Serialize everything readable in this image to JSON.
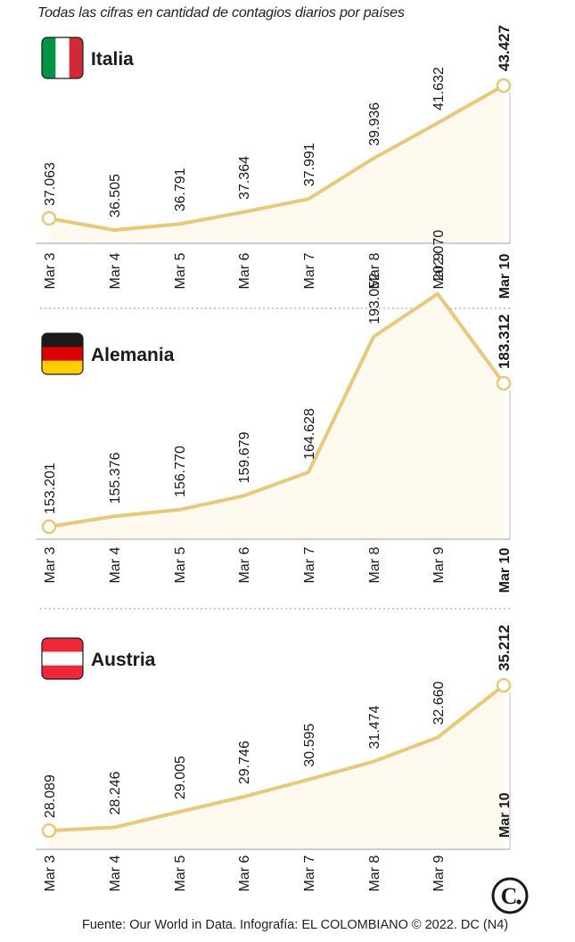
{
  "subtitle": "Todas las cifras en cantidad de contagios diarios por países",
  "source": "Fuente: Our World in Data. Infografía: EL COLOMBIANO © 2022. DC (N4)",
  "logo_text": "C",
  "colors": {
    "line": "#e6c97a",
    "area": "#fdf9ef",
    "marker_fill": "#ffffff"
  },
  "chart_data": [
    {
      "type": "line",
      "title": "Italia",
      "flag": [
        "#009246",
        "#ffffff",
        "#ce2b37"
      ],
      "flag_orientation": "vertical",
      "categories": [
        "Mar 3",
        "Mar 4",
        "Mar 5",
        "Mar 6",
        "Mar 7",
        "Mar 8",
        "Mar 9",
        "Mar 10"
      ],
      "value_labels": [
        "37.063",
        "36.505",
        "36.791",
        "37.364",
        "37.991",
        "39.936",
        "41.632",
        "43.427"
      ],
      "values": [
        37063,
        36505,
        36791,
        37364,
        37991,
        39936,
        41632,
        43427
      ]
    },
    {
      "type": "line",
      "title": "Alemania",
      "flag": [
        "#1a1a1a",
        "#dd0000",
        "#ffce00"
      ],
      "flag_orientation": "horizontal",
      "categories": [
        "Mar 3",
        "Mar 4",
        "Mar 5",
        "Mar 6",
        "Mar 7",
        "Mar 8",
        "Mar 9",
        "Mar 10"
      ],
      "value_labels": [
        "153.201",
        "155.376",
        "156.770",
        "159.679",
        "164.628",
        "193.052",
        "202.070",
        "183.312"
      ],
      "values": [
        153201,
        155376,
        156770,
        159679,
        164628,
        193052,
        202070,
        183312
      ]
    },
    {
      "type": "line",
      "title": "Austria",
      "flag": [
        "#ed2939",
        "#ffffff",
        "#ed2939"
      ],
      "flag_orientation": "horizontal",
      "categories": [
        "Mar 3",
        "Mar 4",
        "Mar 5",
        "Mar 6",
        "Mar 7",
        "Mar 8",
        "Mar 9",
        "Mar 10"
      ],
      "value_labels": [
        "28.089",
        "28.246",
        "29.005",
        "29.746",
        "30.595",
        "31.474",
        "32.660",
        "35.212"
      ],
      "values": [
        28089,
        28246,
        29005,
        29746,
        30595,
        31474,
        32660,
        35212
      ]
    }
  ]
}
